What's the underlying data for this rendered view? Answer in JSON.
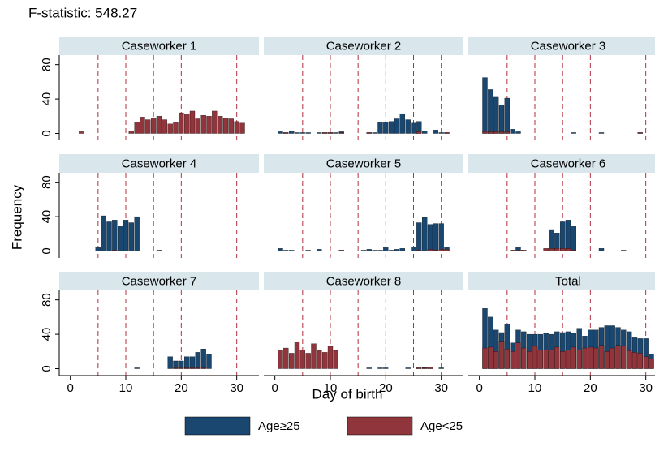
{
  "title": "F-statistic: 548.27",
  "y_label": "Frequency",
  "x_label": "Day of birth",
  "chart_data": [
    {
      "type": "bar",
      "title": "Caseworker 1",
      "x": [
        1,
        2,
        3,
        4,
        5,
        6,
        7,
        8,
        9,
        10,
        11,
        12,
        13,
        14,
        15,
        16,
        17,
        18,
        19,
        20,
        21,
        22,
        23,
        24,
        25,
        26,
        27,
        28,
        29,
        30,
        31
      ],
      "xlim": [
        -2,
        34
      ],
      "ylim": [
        -8,
        91
      ],
      "yticks": [
        0,
        40,
        80
      ],
      "vlines": [
        5,
        10,
        15,
        20,
        25,
        30
      ],
      "series": [
        {
          "name": "Age≥25",
          "color": "#1a476f",
          "values": [
            0,
            0,
            0,
            0,
            0,
            0,
            0,
            0,
            0,
            0,
            0,
            0,
            0,
            0,
            0,
            0,
            0,
            0,
            0,
            0,
            0,
            0,
            0,
            0,
            0,
            0,
            0,
            0,
            0,
            0,
            0
          ]
        },
        {
          "name": "Age<25",
          "color": "#90353b",
          "values": [
            0,
            2,
            0,
            0,
            0,
            0,
            0,
            0,
            0,
            0,
            3,
            13,
            19,
            16,
            18,
            20,
            16,
            11,
            13,
            24,
            23,
            26,
            17,
            21,
            20,
            26,
            20,
            18,
            17,
            14,
            12
          ]
        }
      ]
    },
    {
      "type": "bar",
      "title": "Caseworker 2",
      "x": [
        1,
        2,
        3,
        4,
        5,
        6,
        7,
        8,
        9,
        10,
        11,
        12,
        13,
        14,
        15,
        16,
        17,
        18,
        19,
        20,
        21,
        22,
        23,
        24,
        25,
        26,
        27,
        28,
        29,
        30,
        31
      ],
      "xlim": [
        -2,
        34
      ],
      "ylim": [
        -8,
        91
      ],
      "vlines": [
        5,
        10,
        15,
        20,
        25,
        30
      ],
      "series": [
        {
          "name": "Age≥25",
          "color": "#1a476f",
          "values": [
            2,
            1,
            3,
            1,
            1,
            1,
            0,
            1,
            1,
            1,
            1,
            2,
            0,
            0,
            0,
            0,
            1,
            1,
            13,
            13,
            14,
            17,
            23,
            16,
            12,
            14,
            3,
            0,
            4,
            1,
            1
          ]
        },
        {
          "name": "Age<25",
          "color": "#90353b",
          "values": [
            0,
            1,
            0,
            0,
            0,
            0,
            0,
            0,
            1,
            1,
            0,
            1,
            0,
            0,
            0,
            0,
            1,
            0,
            0,
            0,
            0,
            0,
            0,
            0,
            0,
            2,
            0,
            0,
            0,
            0,
            1
          ]
        }
      ]
    },
    {
      "type": "bar",
      "title": "Caseworker 3",
      "x": [
        1,
        2,
        3,
        4,
        5,
        6,
        7,
        8,
        9,
        10,
        11,
        12,
        13,
        14,
        15,
        16,
        17,
        18,
        19,
        20,
        21,
        22,
        23,
        24,
        25,
        26,
        27,
        28,
        29,
        30,
        31
      ],
      "xlim": [
        -2,
        34
      ],
      "ylim": [
        -8,
        91
      ],
      "vlines": [
        5,
        10,
        15,
        20,
        25,
        30
      ],
      "series": [
        {
          "name": "Age≥25",
          "color": "#1a476f",
          "values": [
            65,
            51,
            43,
            33,
            41,
            5,
            2,
            0,
            0,
            0,
            0,
            0,
            0,
            0,
            0,
            0,
            1,
            0,
            0,
            0,
            0,
            1,
            0,
            0,
            0,
            0,
            0,
            0,
            1,
            0,
            0
          ]
        },
        {
          "name": "Age<25",
          "color": "#90353b",
          "values": [
            2,
            2,
            2,
            2,
            2,
            0,
            0,
            0,
            0,
            0,
            0,
            0,
            0,
            0,
            0,
            0,
            0,
            0,
            0,
            0,
            0,
            0,
            0,
            0,
            0,
            0,
            0,
            0,
            1,
            0,
            0
          ]
        }
      ]
    },
    {
      "type": "bar",
      "title": "Caseworker 4",
      "x": [
        1,
        2,
        3,
        4,
        5,
        6,
        7,
        8,
        9,
        10,
        11,
        12,
        13,
        14,
        15,
        16,
        17,
        18,
        19,
        20,
        21,
        22,
        23,
        24,
        25,
        26,
        27,
        28,
        29,
        30,
        31
      ],
      "xlim": [
        -2,
        34
      ],
      "ylim": [
        -8,
        91
      ],
      "yticks": [
        0,
        40,
        80
      ],
      "vlines": [
        5,
        10,
        15,
        20,
        25,
        30
      ],
      "series": [
        {
          "name": "Age≥25",
          "color": "#1a476f",
          "values": [
            0,
            0,
            0,
            0,
            4,
            41,
            34,
            36,
            29,
            36,
            33,
            40,
            0,
            0,
            0,
            1,
            0,
            0,
            0,
            0,
            0,
            0,
            0,
            0,
            0,
            0,
            0,
            0,
            0,
            0,
            0
          ]
        },
        {
          "name": "Age<25",
          "color": "#90353b",
          "values": [
            0,
            0,
            0,
            0,
            0,
            0,
            0,
            1,
            0,
            0,
            0,
            0,
            0,
            0,
            0,
            0,
            0,
            0,
            0,
            0,
            0,
            0,
            0,
            0,
            0,
            0,
            0,
            0,
            0,
            0,
            0
          ]
        }
      ]
    },
    {
      "type": "bar",
      "title": "Caseworker 5",
      "x": [
        1,
        2,
        3,
        4,
        5,
        6,
        7,
        8,
        9,
        10,
        11,
        12,
        13,
        14,
        15,
        16,
        17,
        18,
        19,
        20,
        21,
        22,
        23,
        24,
        25,
        26,
        27,
        28,
        29,
        30,
        31
      ],
      "xlim": [
        -2,
        34
      ],
      "ylim": [
        -8,
        91
      ],
      "vlines": [
        5,
        10,
        15,
        20,
        25,
        30
      ],
      "series": [
        {
          "name": "Age≥25",
          "color": "#1a476f",
          "values": [
            3,
            1,
            1,
            0,
            0,
            1,
            0,
            2,
            0,
            0,
            0,
            1,
            0,
            0,
            0,
            1,
            2,
            1,
            1,
            4,
            1,
            2,
            3,
            0,
            5,
            33,
            39,
            31,
            32,
            32,
            5
          ]
        },
        {
          "name": "Age<25",
          "color": "#90353b",
          "values": [
            0,
            0,
            0,
            0,
            0,
            0,
            0,
            0,
            0,
            0,
            0,
            1,
            0,
            0,
            0,
            0,
            0,
            0,
            0,
            0,
            0,
            0,
            0,
            0,
            0,
            1,
            0,
            2,
            1,
            2,
            2
          ]
        }
      ]
    },
    {
      "type": "bar",
      "title": "Caseworker 6",
      "x": [
        1,
        2,
        3,
        4,
        5,
        6,
        7,
        8,
        9,
        10,
        11,
        12,
        13,
        14,
        15,
        16,
        17,
        18,
        19,
        20,
        21,
        22,
        23,
        24,
        25,
        26,
        27,
        28,
        29,
        30,
        31
      ],
      "xlim": [
        -2,
        34
      ],
      "ylim": [
        -8,
        91
      ],
      "vlines": [
        5,
        10,
        15,
        20,
        25,
        30
      ],
      "series": [
        {
          "name": "Age≥25",
          "color": "#1a476f",
          "values": [
            0,
            0,
            0,
            0,
            0,
            1,
            4,
            1,
            0,
            0,
            0,
            2,
            25,
            21,
            34,
            36,
            29,
            0,
            0,
            0,
            0,
            3,
            0,
            0,
            0,
            1,
            0,
            0,
            0,
            0,
            0
          ]
        },
        {
          "name": "Age<25",
          "color": "#90353b",
          "values": [
            0,
            0,
            0,
            0,
            0,
            1,
            1,
            1,
            0,
            0,
            0,
            3,
            3,
            3,
            3,
            3,
            1,
            0,
            0,
            0,
            0,
            0,
            0,
            0,
            0,
            0,
            0,
            0,
            0,
            0,
            0
          ]
        }
      ]
    },
    {
      "type": "bar",
      "title": "Caseworker 7",
      "x": [
        1,
        2,
        3,
        4,
        5,
        6,
        7,
        8,
        9,
        10,
        11,
        12,
        13,
        14,
        15,
        16,
        17,
        18,
        19,
        20,
        21,
        22,
        23,
        24,
        25,
        26,
        27,
        28,
        29,
        30,
        31
      ],
      "xlim": [
        -2,
        34
      ],
      "ylim": [
        -8,
        91
      ],
      "yticks": [
        0,
        40,
        80
      ],
      "xticks": [
        0,
        10,
        20,
        30
      ],
      "vlines": [
        5,
        10,
        15,
        20,
        25,
        30
      ],
      "series": [
        {
          "name": "Age≥25",
          "color": "#1a476f",
          "values": [
            0,
            0,
            0,
            0,
            0,
            0,
            0,
            0,
            0,
            0,
            0,
            1,
            0,
            0,
            0,
            0,
            0,
            14,
            9,
            9,
            14,
            14,
            19,
            23,
            17,
            0,
            0,
            0,
            0,
            0,
            0
          ]
        },
        {
          "name": "Age<25",
          "color": "#90353b",
          "values": [
            0,
            0,
            0,
            0,
            0,
            0,
            0,
            0,
            0,
            0,
            0,
            0,
            0,
            0,
            0,
            0,
            0,
            0,
            1,
            1,
            1,
            1,
            1,
            1,
            0,
            0,
            0,
            0,
            0,
            0,
            0
          ]
        }
      ]
    },
    {
      "type": "bar",
      "title": "Caseworker 8",
      "x": [
        1,
        2,
        3,
        4,
        5,
        6,
        7,
        8,
        9,
        10,
        11,
        12,
        13,
        14,
        15,
        16,
        17,
        18,
        19,
        20,
        21,
        22,
        23,
        24,
        25,
        26,
        27,
        28,
        29,
        30,
        31
      ],
      "xlim": [
        -2,
        34
      ],
      "ylim": [
        -8,
        91
      ],
      "xticks": [
        0,
        10,
        20,
        30
      ],
      "vlines": [
        5,
        10,
        15,
        20,
        25,
        30
      ],
      "series": [
        {
          "name": "Age≥25",
          "color": "#1a476f",
          "values": [
            0,
            0,
            0,
            0,
            0,
            0,
            0,
            0,
            0,
            0,
            0,
            0,
            0,
            0,
            0,
            0,
            1,
            0,
            1,
            1,
            0,
            0,
            0,
            1,
            0,
            1,
            2,
            2,
            0,
            1,
            0
          ]
        },
        {
          "name": "Age<25",
          "color": "#90353b",
          "values": [
            22,
            24,
            18,
            31,
            22,
            18,
            29,
            21,
            19,
            26,
            21,
            0,
            0,
            0,
            0,
            0,
            0,
            0,
            0,
            0,
            0,
            0,
            0,
            0,
            0,
            1,
            1,
            2,
            0,
            0,
            0
          ]
        }
      ]
    },
    {
      "type": "bar",
      "title": "Total",
      "x": [
        1,
        2,
        3,
        4,
        5,
        6,
        7,
        8,
        9,
        10,
        11,
        12,
        13,
        14,
        15,
        16,
        17,
        18,
        19,
        20,
        21,
        22,
        23,
        24,
        25,
        26,
        27,
        28,
        29,
        30,
        31
      ],
      "xlim": [
        -2,
        34
      ],
      "ylim": [
        -8,
        91
      ],
      "xticks": [
        0,
        10,
        20,
        30
      ],
      "vlines": [
        5,
        10,
        15,
        20,
        25,
        30
      ],
      "series": [
        {
          "name": "Age≥25",
          "color": "#1a476f",
          "values": [
            70,
            60,
            45,
            42,
            52,
            30,
            45,
            43,
            40,
            40,
            40,
            41,
            40,
            43,
            42,
            43,
            41,
            47,
            38,
            45,
            45,
            48,
            50,
            50,
            48,
            45,
            43,
            36,
            35,
            35,
            17
          ]
        },
        {
          "name": "Age<25",
          "color": "#90353b",
          "values": [
            24,
            25,
            20,
            32,
            23,
            20,
            30,
            24,
            20,
            26,
            22,
            22,
            22,
            25,
            20,
            22,
            25,
            22,
            24,
            25,
            24,
            27,
            20,
            24,
            27,
            26,
            21,
            19,
            18,
            14,
            11
          ]
        }
      ]
    }
  ]
}
